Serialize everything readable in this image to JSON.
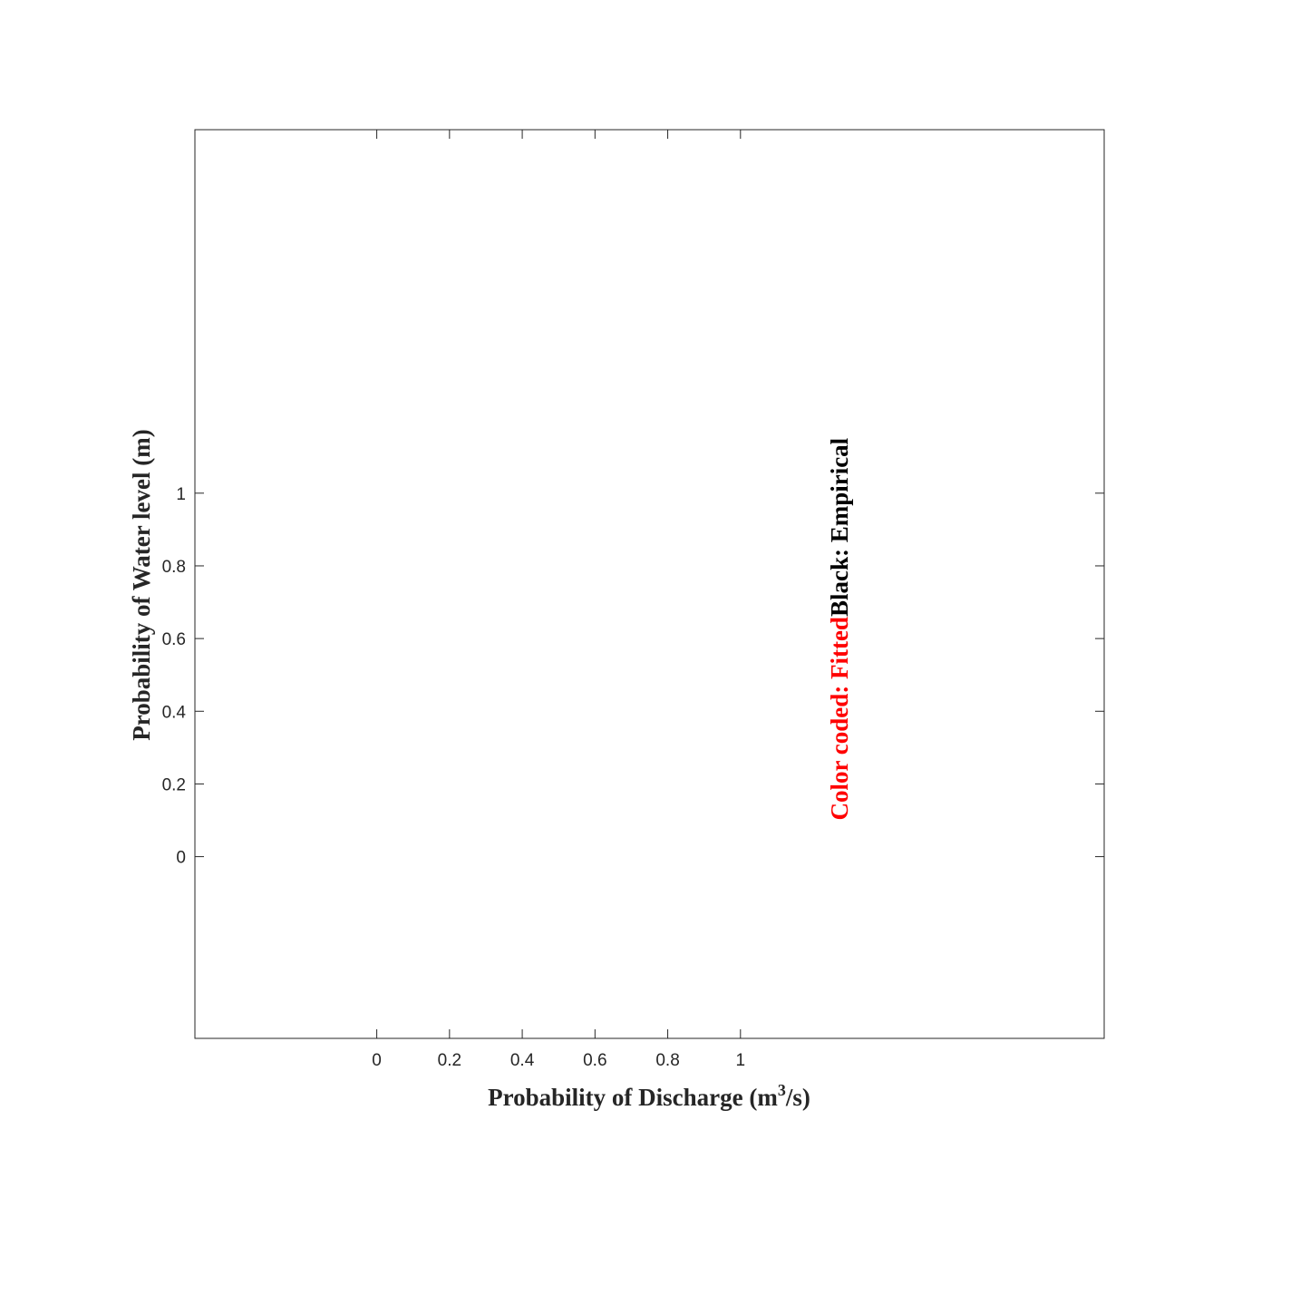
{
  "chart_data": {
    "type": "scatter",
    "title": "",
    "xlabel": {
      "prefix": "Probability of Discharge (m",
      "superscript": "3",
      "suffix": "/s)"
    },
    "ylabel": "Probability of Water level (m)",
    "xlim": [
      -0.5,
      2.0
    ],
    "ylim": [
      -0.5,
      2.0
    ],
    "xticks": [
      0,
      0.2,
      0.4,
      0.6,
      0.8,
      1
    ],
    "xtick_labels": [
      "0",
      "0.2",
      "0.4",
      "0.6",
      "0.8",
      "1"
    ],
    "yticks": [
      0,
      0.2,
      0.4,
      0.6,
      0.8,
      1
    ],
    "ytick_labels": [
      "0",
      "0.2",
      "0.4",
      "0.6",
      "0.8",
      "1"
    ],
    "grid": false,
    "series": [],
    "annotation": {
      "parts": [
        {
          "text": "Color coded: Fitted",
          "color": "#ff0000"
        },
        {
          "text": "Black: Empirical",
          "color": "#000000"
        }
      ],
      "rotation": "vertical",
      "x": 1.27,
      "y": 0.1
    },
    "colors": {
      "axis": "#262626",
      "fitted": "#ff0000",
      "empirical": "#000000"
    }
  }
}
